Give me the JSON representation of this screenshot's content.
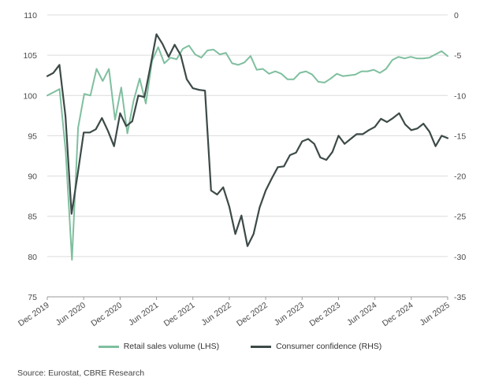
{
  "chart_data": {
    "type": "line",
    "x_labels": [
      "Dec 2019",
      "Jun 2020",
      "Dec 2020",
      "Jun 2021",
      "Dec 2021",
      "Jun 2022",
      "Dec 2022",
      "Jun 2023",
      "Dec 2023",
      "Jun 2024",
      "Dec 2024",
      "Jun 2025"
    ],
    "y_left": {
      "min": 75,
      "max": 110,
      "ticks": [
        75,
        80,
        85,
        90,
        95,
        100,
        105,
        110
      ]
    },
    "y_right": {
      "min": -35,
      "max": 0,
      "ticks": [
        -35,
        -30,
        -25,
        -20,
        -15,
        -10,
        -5,
        0
      ]
    },
    "grid": "horizontal",
    "legend_position": "bottom",
    "series": [
      {
        "name": "Retail sales volume (LHS)",
        "axis": "left",
        "color": "#7fbf9f",
        "values": [
          100.0,
          100.4,
          100.8,
          93.0,
          79.6,
          96.0,
          100.2,
          100.0,
          103.3,
          101.8,
          103.3,
          97.0,
          101.0,
          95.3,
          99.3,
          102.1,
          99.0,
          104.3,
          106.0,
          104.0,
          104.7,
          104.5,
          105.8,
          106.2,
          105.1,
          104.7,
          105.6,
          105.7,
          105.1,
          105.3,
          104.0,
          103.8,
          104.1,
          104.9,
          103.2,
          103.3,
          102.7,
          103.0,
          102.7,
          102.0,
          102.0,
          102.8,
          103.0,
          102.6,
          101.7,
          101.6,
          102.1,
          102.7,
          102.4,
          102.5,
          102.6,
          103.0,
          103.0,
          103.2,
          102.8,
          103.3,
          104.4,
          104.8,
          104.6,
          104.8,
          104.6,
          104.6,
          104.7,
          105.1,
          105.5,
          104.9
        ]
      },
      {
        "name": "Consumer confidence (RHS)",
        "axis": "right",
        "color": "#3c4a48",
        "values": [
          -7.6,
          -7.2,
          -6.2,
          -12.6,
          -24.7,
          -19.8,
          -14.6,
          -14.6,
          -14.2,
          -12.8,
          -14.4,
          -16.3,
          -12.2,
          -13.8,
          -13.2,
          -10.0,
          -10.2,
          -6.4,
          -2.4,
          -3.6,
          -5.2,
          -3.7,
          -5.0,
          -8.0,
          -9.1,
          -9.3,
          -9.4,
          -21.8,
          -22.3,
          -21.4,
          -23.8,
          -27.2,
          -24.9,
          -28.7,
          -27.2,
          -23.9,
          -21.8,
          -20.3,
          -18.9,
          -18.8,
          -17.4,
          -17.1,
          -15.7,
          -15.4,
          -16.0,
          -17.7,
          -18.0,
          -17.0,
          -15.0,
          -16.0,
          -15.4,
          -14.8,
          -14.8,
          -14.3,
          -13.9,
          -12.9,
          -13.3,
          -12.8,
          -12.2,
          -13.6,
          -14.3,
          -14.1,
          -13.5,
          -14.5,
          -16.3,
          -15.0,
          -15.3
        ]
      }
    ]
  },
  "source_text": "Source: Eurostat, CBRE Research"
}
